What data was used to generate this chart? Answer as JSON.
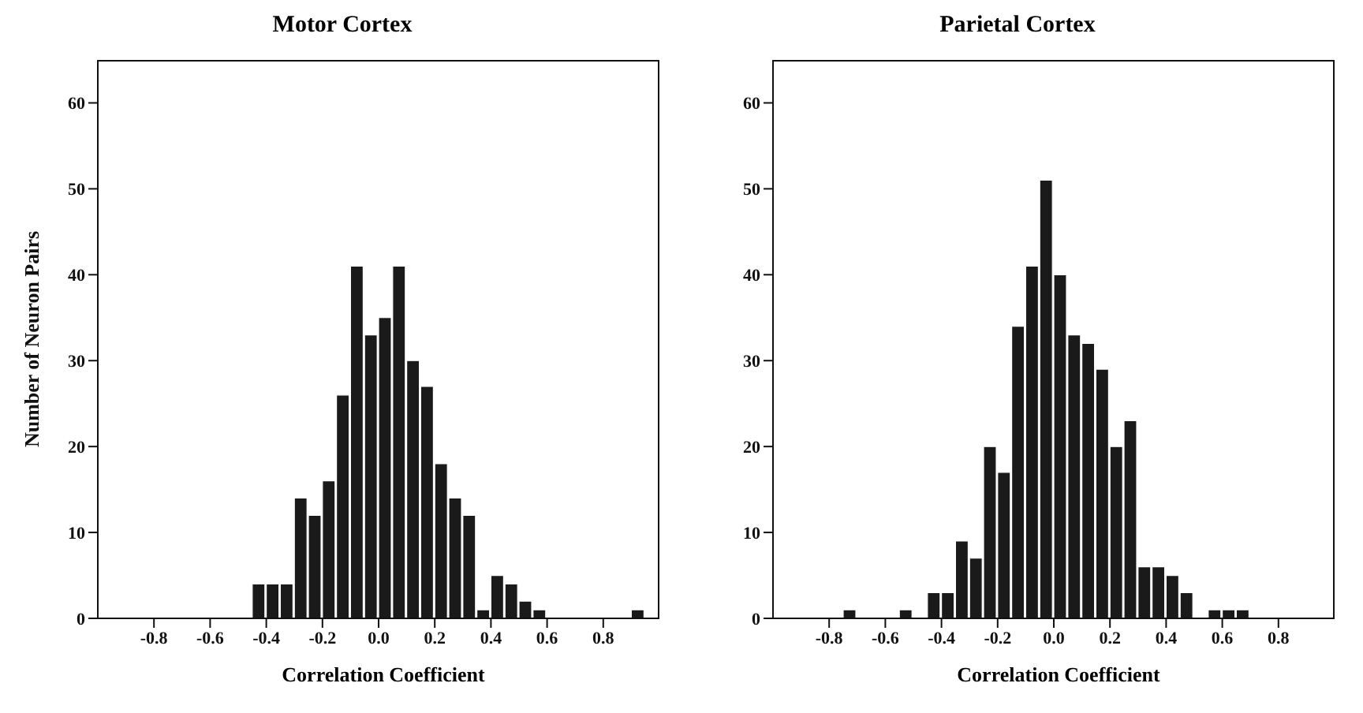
{
  "chart_data": [
    {
      "type": "histogram",
      "title": "Motor Cortex",
      "xlabel": "Correlation Coefficient",
      "ylabel": "Number of Neuron Pairs",
      "color": "#1a1a1a",
      "bins": [
        -1,
        -0.95,
        -0.9,
        -0.85,
        -0.8,
        -0.75,
        -0.7,
        -0.65,
        -0.6,
        -0.55,
        -0.5,
        -0.45,
        -0.4,
        -0.35,
        -0.3,
        -0.25,
        -0.2,
        -0.15,
        -0.1,
        -0.05,
        0,
        0.05,
        0.1,
        0.15,
        0.2,
        0.25,
        0.3,
        0.35,
        0.4,
        0.45,
        0.5,
        0.55,
        0.6,
        0.65,
        0.7,
        0.75,
        0.8,
        0.85,
        0.9,
        0.95,
        1
      ],
      "values": [
        0,
        0,
        0,
        0,
        0,
        0,
        0,
        0,
        0,
        0,
        0,
        4,
        4,
        4,
        14,
        12,
        16,
        26,
        41,
        33,
        35,
        41,
        30,
        27,
        18,
        14,
        12,
        1,
        5,
        4,
        2,
        1,
        0,
        0,
        0,
        0,
        0,
        0,
        1,
        0
      ],
      "xlim": [
        -1,
        1
      ],
      "xticks": [
        -0.8,
        -0.6,
        -0.4,
        -0.2,
        {
          "value": 0,
          "label": "0.0"
        },
        0.2,
        0.4,
        0.6,
        0.8
      ],
      "ylim": [
        0,
        65
      ],
      "yticks": [
        0,
        10,
        20,
        30,
        40,
        50,
        60
      ],
      "grid": false
    },
    {
      "type": "histogram",
      "title": "Parietal Cortex",
      "xlabel": "Correlation Coefficient",
      "color": "#1a1a1a",
      "bins": [
        -1,
        -0.95,
        -0.9,
        -0.85,
        -0.8,
        -0.75,
        -0.7,
        -0.65,
        -0.6,
        -0.55,
        -0.5,
        -0.45,
        -0.4,
        -0.35,
        -0.3,
        -0.25,
        -0.2,
        -0.15,
        -0.1,
        -0.05,
        0,
        0.05,
        0.1,
        0.15,
        0.2,
        0.25,
        0.3,
        0.35,
        0.4,
        0.45,
        0.5,
        0.55,
        0.6,
        0.65,
        0.7,
        0.75,
        0.8,
        0.85,
        0.9,
        0.95,
        1
      ],
      "values": [
        0,
        0,
        0,
        0,
        0,
        1,
        0,
        0,
        0,
        1,
        0,
        3,
        3,
        9,
        7,
        20,
        17,
        34,
        41,
        51,
        40,
        33,
        32,
        29,
        20,
        23,
        6,
        6,
        5,
        3,
        0,
        1,
        1,
        1,
        0,
        0,
        0,
        0,
        0,
        0
      ],
      "xlim": [
        -1,
        1
      ],
      "xticks": [
        -0.8,
        -0.6,
        -0.4,
        -0.2,
        {
          "value": 0,
          "label": "0.0"
        },
        0.2,
        0.4,
        0.6,
        0.8
      ],
      "ylim": [
        0,
        65
      ],
      "yticks": [
        0,
        10,
        20,
        30,
        40,
        50,
        60
      ],
      "grid": false
    }
  ]
}
